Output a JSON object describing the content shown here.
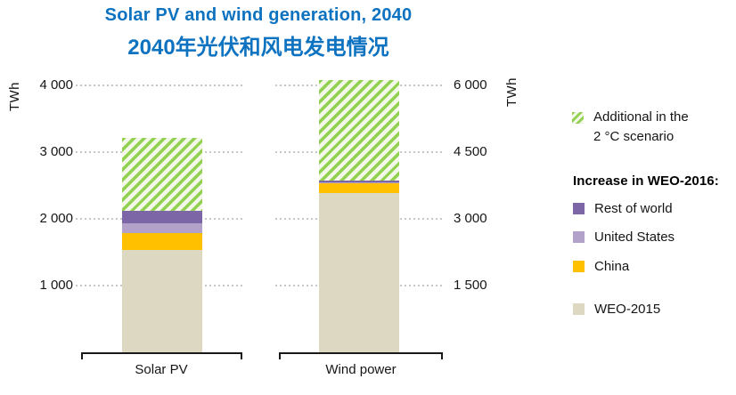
{
  "title": {
    "line1": "Solar PV and wind generation, 2040",
    "line2": "2040年光伏和风电发电情况"
  },
  "axes": {
    "left": {
      "unit": "TWh",
      "ticks": [
        "4 000",
        "3 000",
        "2 000",
        "1 000"
      ]
    },
    "right": {
      "unit": "TWh",
      "ticks": [
        "6 000",
        "4 500",
        "3 000",
        "1 500"
      ]
    }
  },
  "categories": {
    "solar": "Solar PV",
    "wind": "Wind power"
  },
  "legend": {
    "additional_line1": "Additional in the",
    "additional_line2": "2 °C scenario",
    "header": "Increase in WEO-2016:",
    "items": [
      {
        "label": "Rest of world",
        "color": "#7d66a6"
      },
      {
        "label": "United States",
        "color": "#b2a2c9"
      },
      {
        "label": "China",
        "color": "#ffc000"
      },
      {
        "label": "WEO-2015",
        "color": "#ddd8c2"
      }
    ]
  },
  "colors": {
    "title_blue": "#0d72c0",
    "hatch_green": "#92d050",
    "rest_of_world": "#7d66a6",
    "united_states": "#b2a2c9",
    "china": "#ffc000",
    "weo2015_tan": "#ddd8c2",
    "gridline": "#c6c6c6"
  },
  "chart_data": {
    "type": "bar",
    "subtype": "stacked",
    "title": "Solar PV and wind generation, 2040",
    "subtitle": "2040年光伏和风电发电情况",
    "categories": [
      "Solar PV",
      "Wind power"
    ],
    "series": [
      {
        "name": "WEO-2015",
        "values": [
          1540,
          3580
        ],
        "color": "#ddd8c2"
      },
      {
        "name": "China",
        "values": [
          250,
          220
        ],
        "color": "#ffc000"
      },
      {
        "name": "United States",
        "values": [
          140,
          20
        ],
        "color": "#b2a2c9"
      },
      {
        "name": "Rest of world",
        "values": [
          190,
          50
        ],
        "color": "#7d66a6"
      },
      {
        "name": "Additional in the 2 °C scenario",
        "values": [
          1100,
          2260
        ],
        "color": "#92d050",
        "pattern": "diagonal-hatch"
      }
    ],
    "ylabel_left": "TWh",
    "ylabel_right": "TWh",
    "ylim_left": [
      0,
      4000
    ],
    "ylim_right": [
      0,
      6000
    ],
    "tick_step_left": 1000,
    "tick_step_right": 1500,
    "axis_note": "Solar PV plotted against left axis (0–4 000 TWh); Wind power against right axis (0–6 000 TWh)",
    "grid": "dotted horizontal gridlines",
    "legend_position": "right"
  }
}
